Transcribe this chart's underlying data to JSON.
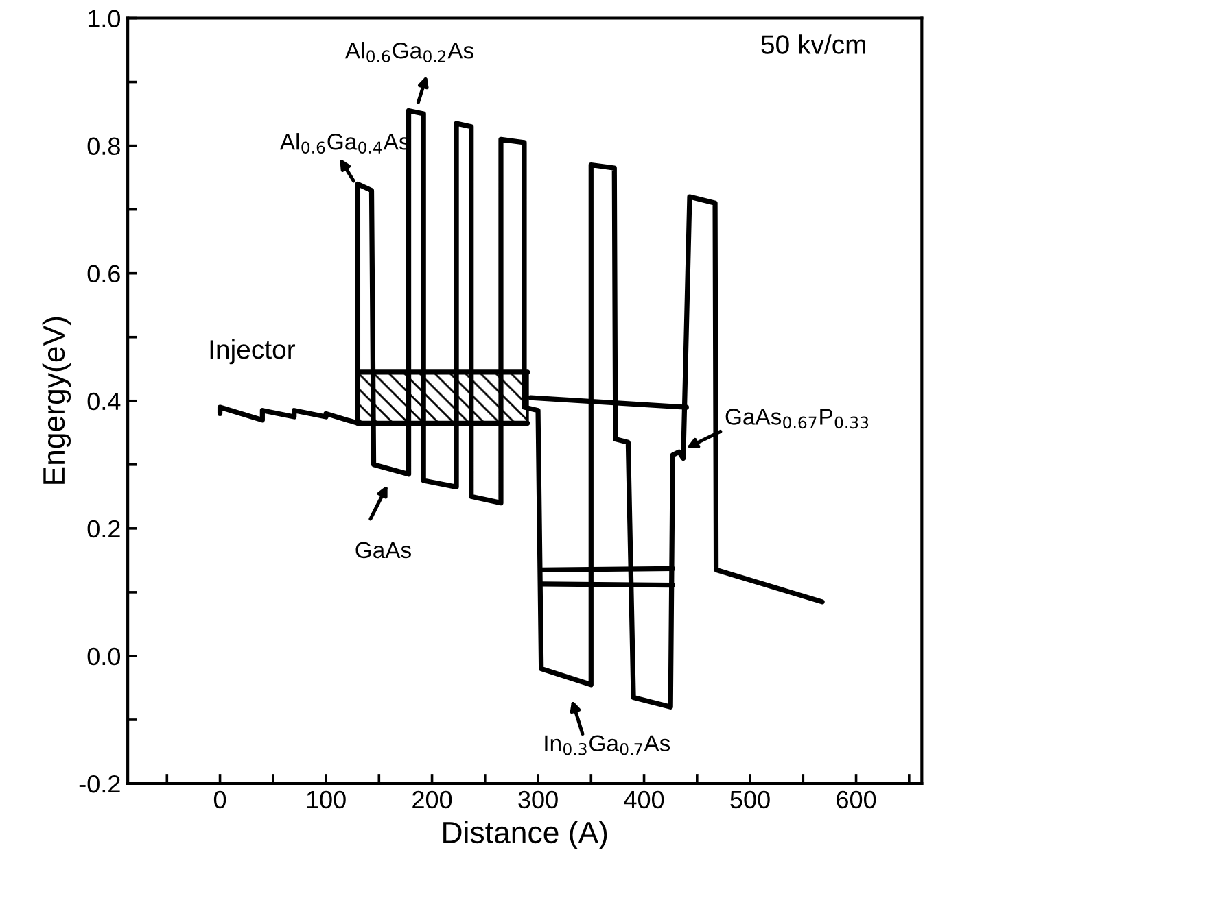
{
  "chart_data": {
    "type": "line",
    "xlabel": "Distance (A)",
    "ylabel": "Engergy(eV)",
    "xlim": [
      -87,
      662
    ],
    "ylim": [
      -0.2,
      1.0
    ],
    "xticks": [
      {
        "value": -50,
        "label": null
      },
      0,
      {
        "value": 50,
        "label": null
      },
      100,
      {
        "value": 150,
        "label": null
      },
      200,
      {
        "value": 250,
        "label": null
      },
      300,
      {
        "value": 350,
        "label": null
      },
      400,
      {
        "value": 450,
        "label": null
      },
      500,
      {
        "value": 550,
        "label": null
      },
      600,
      {
        "value": 650,
        "label": null
      }
    ],
    "yticks": [
      -0.2,
      {
        "value": -0.1,
        "label": null
      },
      {
        "value": 0.0,
        "label": "0.0"
      },
      {
        "value": 0.1,
        "label": null
      },
      0.2,
      {
        "value": 0.3,
        "label": null
      },
      0.4,
      {
        "value": 0.5,
        "label": null
      },
      0.6,
      {
        "value": 0.7,
        "label": null
      },
      0.8,
      {
        "value": 0.9,
        "label": null
      },
      {
        "value": 1.0,
        "label": "1.0"
      }
    ],
    "grid": false,
    "legend": false,
    "marker": "none",
    "line_style": "solid",
    "series": [
      {
        "color": "#000000",
        "x": [
          0,
          0,
          40,
          40,
          70,
          70,
          100,
          100,
          130,
          130,
          143,
          145,
          178,
          178,
          192,
          192,
          223,
          223,
          237,
          237,
          265,
          265,
          287,
          287,
          300,
          303,
          350,
          350,
          372,
          373,
          385,
          390,
          425,
          427,
          433,
          437,
          443,
          467,
          468,
          568
        ],
        "values": [
          0.38,
          0.39,
          0.37,
          0.385,
          0.375,
          0.385,
          0.375,
          0.38,
          0.365,
          0.74,
          0.73,
          0.3,
          0.285,
          0.855,
          0.85,
          0.275,
          0.265,
          0.835,
          0.83,
          0.25,
          0.24,
          0.81,
          0.805,
          0.39,
          0.385,
          -0.02,
          -0.045,
          0.77,
          0.765,
          0.34,
          0.335,
          -0.065,
          -0.08,
          0.315,
          0.32,
          0.31,
          0.72,
          0.71,
          0.135,
          0.085
        ]
      },
      {
        "color": "#000000",
        "x": [
          293,
          440
        ],
        "values": [
          0.405,
          0.39
        ]
      },
      {
        "color": "#000000",
        "x": [
          303,
          427
        ],
        "values": [
          0.135,
          0.137
        ]
      },
      {
        "color": "#000000",
        "x": [
          303,
          427
        ],
        "values": [
          0.113,
          0.111
        ]
      },
      {
        "color": "#000000",
        "x": [
          130,
          290
        ],
        "values": [
          0.445,
          0.445
        ]
      },
      {
        "color": "#000000",
        "x": [
          130,
          290
        ],
        "values": [
          0.365,
          0.365
        ]
      }
    ],
    "annotations": [
      "Injector",
      "50 kv/cm",
      "Al$_{0.6}$Ga$_{0.4}$As",
      "Al$_{0.6}$Ga$_{0.2}$As",
      "GaAs",
      "In$_{0.3}$Ga$_{0.7}$As",
      {
        "text": "GaAs$_{0.67}$P$_{0.33}$",
        "x": 440,
        "y": 0.326
      }
    ]
  }
}
